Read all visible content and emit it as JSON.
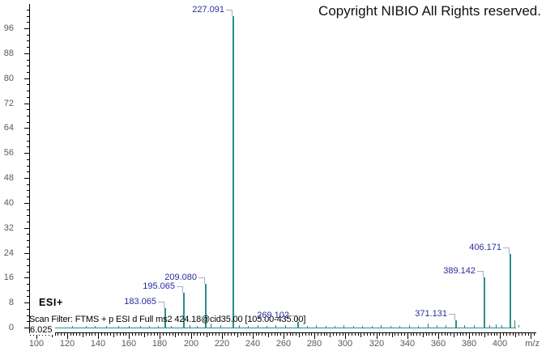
{
  "copyright": "Copyright NIBIO All Rights reserved.",
  "ionization_label": "ESI+",
  "scan_filter": "Scan Filter: FTMS + p ESI d Full ms2 424.18@cid35.00 [105.00-435.00]",
  "retention_time": "6.025",
  "colors": {
    "peak": "#2e8b8b",
    "peak_label": "#2b2b9e",
    "label_hook": "#a8aec8",
    "axis": "#000000",
    "tick_label": "#595959"
  },
  "chart_data": {
    "type": "bar",
    "title": "",
    "xlabel": "m/z",
    "ylabel": "",
    "x_axis": {
      "label": "m/z",
      "min": 96,
      "max": 422,
      "major_step": 20,
      "medium_step": 10,
      "minor_step": 2,
      "labeled_ticks": [
        100,
        120,
        140,
        160,
        180,
        200,
        220,
        240,
        260,
        280,
        300,
        320,
        340,
        360,
        380,
        400
      ]
    },
    "y_axis": {
      "min": 0,
      "max": 102,
      "major_step": 8,
      "minor_step": 2,
      "labeled_ticks": [
        0,
        8,
        16,
        24,
        32,
        40,
        48,
        56,
        64,
        72,
        80,
        88,
        96
      ]
    },
    "labeled_peaks": [
      {
        "mz": 183.065,
        "intensity": 6.3,
        "label": "183.065"
      },
      {
        "mz": 195.065,
        "intensity": 11.2,
        "label": "195.065"
      },
      {
        "mz": 209.08,
        "intensity": 14.0,
        "label": "209.080"
      },
      {
        "mz": 227.091,
        "intensity": 100.0,
        "label": "227.091"
      },
      {
        "mz": 269.102,
        "intensity": 1.9,
        "label": "269.102"
      },
      {
        "mz": 371.131,
        "intensity": 2.3,
        "label": "371.131"
      },
      {
        "mz": 389.142,
        "intensity": 16.0,
        "label": "389.142"
      },
      {
        "mz": 406.171,
        "intensity": 23.5,
        "label": "406.171"
      }
    ],
    "minor_peaks": [
      [
        123,
        0.4
      ],
      [
        132,
        0.5
      ],
      [
        138,
        0.4
      ],
      [
        145,
        0.5
      ],
      [
        153,
        0.6
      ],
      [
        160,
        0.4
      ],
      [
        167,
        0.5
      ],
      [
        173,
        0.4
      ],
      [
        179,
        0.5
      ],
      [
        187,
        0.6
      ],
      [
        199,
        0.7
      ],
      [
        204,
        0.6
      ],
      [
        213,
        1.2
      ],
      [
        219,
        0.8
      ],
      [
        231,
        0.9
      ],
      [
        237,
        0.6
      ],
      [
        243,
        0.8
      ],
      [
        249,
        0.6
      ],
      [
        255,
        0.9
      ],
      [
        261,
        0.7
      ],
      [
        275,
        0.6
      ],
      [
        281,
        0.8
      ],
      [
        287,
        0.5
      ],
      [
        293,
        0.6
      ],
      [
        299,
        0.7
      ],
      [
        305,
        0.5
      ],
      [
        311,
        0.6
      ],
      [
        317,
        0.5
      ],
      [
        323,
        0.7
      ],
      [
        329,
        0.6
      ],
      [
        335,
        0.5
      ],
      [
        341,
        0.8
      ],
      [
        347,
        0.6
      ],
      [
        353,
        1.3
      ],
      [
        359,
        0.8
      ],
      [
        365,
        0.7
      ],
      [
        377,
        0.7
      ],
      [
        383,
        0.8
      ],
      [
        393,
        0.9
      ],
      [
        397,
        1.0
      ],
      [
        401,
        0.7
      ],
      [
        409.3,
        2.3
      ],
      [
        412,
        0.9
      ]
    ]
  }
}
